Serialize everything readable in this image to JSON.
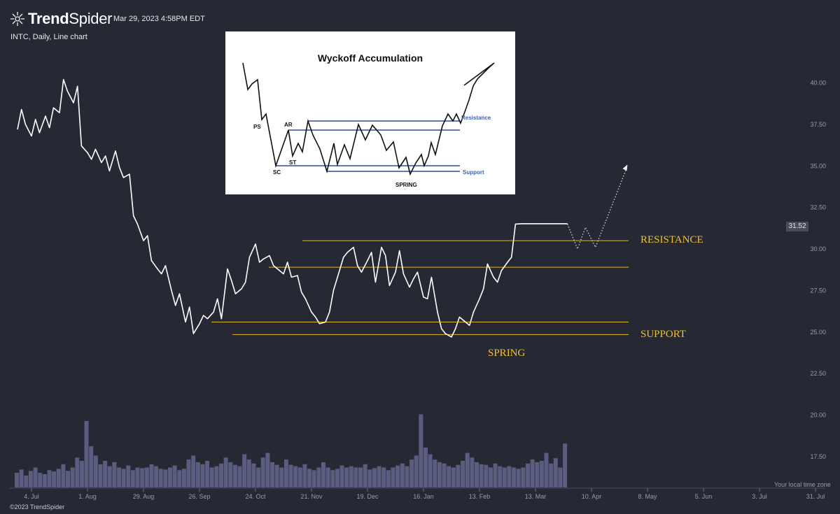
{
  "header": {
    "brand": "TrendSpider",
    "timestamp": "Mar 29, 2023 4:58PM EDT",
    "symbol_line": "INTC, Daily, Line chart"
  },
  "footer": {
    "copyright": "©2023 TrendSpider",
    "timezone_note": "Your local time zone"
  },
  "price_badge": "31.52",
  "annotations": {
    "resistance": "RESISTANCE",
    "support": "SUPPORT",
    "spring": "SPRING"
  },
  "inset": {
    "title": "Wyckoff Accumulation",
    "labels": [
      "PS",
      "AR",
      "ST",
      "SC",
      "Resistance",
      "Support",
      "SPRING"
    ]
  },
  "colors": {
    "background": "#262833",
    "price_line": "#ffffff",
    "level_lines": "#e8b623",
    "volume_bars": "#5a5d80",
    "inset_levels": "#3a62b8"
  },
  "chart_data": {
    "type": "line",
    "title": "",
    "symbol": "INTC",
    "interval": "Daily",
    "ylim": [
      15.5,
      41.5
    ],
    "y_ticks": [
      "17.50",
      "20.00",
      "22.50",
      "25.00",
      "27.50",
      "30.00",
      "32.50",
      "35.00",
      "37.50",
      "40.00"
    ],
    "x_tick_labels": [
      "4. Jul",
      "1. Aug",
      "29. Aug",
      "26. Sep",
      "24. Oct",
      "21. Nov",
      "19. Dec",
      "16. Jan",
      "13. Feb",
      "13. Mar",
      "10. Apr",
      "8. May",
      "5. Jun",
      "3. Jul",
      "31. Jul"
    ],
    "last_price": 31.52,
    "series": [
      {
        "x": [
          "2022-06-27",
          "2022-06-29",
          "2022-07-01",
          "2022-07-04",
          "2022-07-06",
          "2022-07-08",
          "2022-07-11",
          "2022-07-13",
          "2022-07-15",
          "2022-07-18",
          "2022-07-20",
          "2022-07-22",
          "2022-07-25",
          "2022-07-27",
          "2022-07-29",
          "2022-08-01",
          "2022-08-03",
          "2022-08-05",
          "2022-08-08",
          "2022-08-10",
          "2022-08-12",
          "2022-08-15",
          "2022-08-17",
          "2022-08-19",
          "2022-08-22",
          "2022-08-24",
          "2022-08-26",
          "2022-08-29",
          "2022-08-31",
          "2022-09-02",
          "2022-09-05",
          "2022-09-07",
          "2022-09-09",
          "2022-09-12",
          "2022-09-14",
          "2022-09-16",
          "2022-09-19",
          "2022-09-21",
          "2022-09-23",
          "2022-09-26",
          "2022-09-28",
          "2022-09-30",
          "2022-10-03",
          "2022-10-05",
          "2022-10-07",
          "2022-10-10",
          "2022-10-12",
          "2022-10-14",
          "2022-10-17",
          "2022-10-19",
          "2022-10-21",
          "2022-10-24",
          "2022-10-26",
          "2022-10-28",
          "2022-10-31",
          "2022-11-02",
          "2022-11-04",
          "2022-11-07",
          "2022-11-09",
          "2022-11-11",
          "2022-11-14",
          "2022-11-16",
          "2022-11-18",
          "2022-11-21",
          "2022-11-23",
          "2022-11-25",
          "2022-11-28",
          "2022-11-30",
          "2022-12-02",
          "2022-12-05",
          "2022-12-07",
          "2022-12-09",
          "2022-12-12",
          "2022-12-14",
          "2022-12-16",
          "2022-12-19",
          "2022-12-21",
          "2022-12-23",
          "2022-12-26",
          "2022-12-28",
          "2022-12-30",
          "2023-01-02",
          "2023-01-04",
          "2023-01-06",
          "2023-01-09",
          "2023-01-11",
          "2023-01-13",
          "2023-01-16",
          "2023-01-18",
          "2023-01-20",
          "2023-01-23",
          "2023-01-25",
          "2023-01-27",
          "2023-01-30",
          "2023-02-01",
          "2023-02-03",
          "2023-02-06",
          "2023-02-08",
          "2023-02-10",
          "2023-02-13",
          "2023-02-15",
          "2023-02-17",
          "2023-02-20",
          "2023-02-22",
          "2023-02-24",
          "2023-02-27",
          "2023-03-01",
          "2023-03-03",
          "2023-03-06",
          "2023-03-08",
          "2023-03-10",
          "2023-03-13",
          "2023-03-15",
          "2023-03-17",
          "2023-03-20",
          "2023-03-22",
          "2023-03-24",
          "2023-03-29"
        ],
        "y": [
          37.2,
          38.4,
          37.5,
          36.8,
          37.8,
          37.0,
          38.0,
          37.3,
          38.5,
          38.2,
          40.2,
          39.5,
          38.8,
          39.8,
          36.2,
          35.8,
          35.4,
          36.0,
          35.2,
          35.6,
          34.7,
          35.9,
          34.9,
          34.3,
          34.5,
          32.0,
          31.5,
          30.5,
          30.8,
          29.3,
          28.8,
          28.5,
          29.0,
          27.5,
          26.6,
          27.3,
          25.6,
          26.5,
          24.9,
          25.5,
          26.0,
          25.8,
          26.2,
          27.0,
          25.8,
          28.8,
          28.1,
          27.3,
          27.6,
          28.0,
          29.5,
          30.3,
          29.2,
          29.4,
          29.6,
          29.0,
          28.8,
          28.5,
          29.2,
          28.3,
          28.4,
          27.4,
          27.0,
          26.2,
          25.9,
          25.5,
          25.6,
          26.2,
          27.5,
          28.7,
          29.5,
          29.8,
          30.1,
          29.0,
          28.6,
          29.3,
          29.8,
          28.0,
          30.1,
          29.6,
          27.8,
          28.6,
          29.9,
          28.5,
          27.7,
          28.2,
          28.6,
          27.1,
          27.0,
          28.3,
          26.2,
          25.2,
          24.9,
          24.7,
          25.2,
          25.9,
          25.6,
          25.4,
          26.2,
          27.0,
          27.6,
          29.1,
          28.3,
          28.0,
          28.7,
          29.2,
          29.5,
          31.5,
          31.52,
          31.52,
          31.52,
          31.52,
          31.52,
          31.52,
          31.52,
          31.52,
          31.52,
          31.52
        ]
      }
    ],
    "projection": {
      "style": "dotted",
      "x": [
        "2023-03-29",
        "2023-04-03",
        "2023-04-07",
        "2023-04-12",
        "2023-04-28"
      ],
      "y": [
        31.5,
        30.0,
        31.3,
        30.1,
        35.0
      ]
    },
    "levels": [
      {
        "name": "RESISTANCE",
        "y": 30.5
      },
      {
        "name": "",
        "y": 28.9
      },
      {
        "name": "",
        "y": 25.6
      },
      {
        "name": "SUPPORT",
        "y": 24.85
      }
    ],
    "volume": {
      "unit": "relative",
      "values": [
        0.22,
        0.27,
        0.18,
        0.25,
        0.3,
        0.22,
        0.2,
        0.26,
        0.24,
        0.28,
        0.35,
        0.25,
        0.3,
        0.45,
        0.4,
        1.0,
        0.62,
        0.48,
        0.35,
        0.4,
        0.32,
        0.38,
        0.3,
        0.28,
        0.33,
        0.26,
        0.3,
        0.29,
        0.3,
        0.35,
        0.32,
        0.28,
        0.27,
        0.3,
        0.33,
        0.26,
        0.28,
        0.42,
        0.48,
        0.38,
        0.35,
        0.4,
        0.3,
        0.32,
        0.36,
        0.45,
        0.38,
        0.34,
        0.32,
        0.5,
        0.42,
        0.36,
        0.3,
        0.45,
        0.52,
        0.38,
        0.34,
        0.3,
        0.42,
        0.34,
        0.32,
        0.3,
        0.35,
        0.28,
        0.26,
        0.3,
        0.38,
        0.3,
        0.26,
        0.28,
        0.33,
        0.3,
        0.32,
        0.3,
        0.3,
        0.35,
        0.27,
        0.29,
        0.32,
        0.3,
        0.26,
        0.3,
        0.33,
        0.36,
        0.32,
        0.42,
        0.48,
        1.1,
        0.6,
        0.5,
        0.42,
        0.38,
        0.36,
        0.32,
        0.3,
        0.34,
        0.4,
        0.52,
        0.45,
        0.38,
        0.35,
        0.34,
        0.3,
        0.36,
        0.32,
        0.3,
        0.32,
        0.3,
        0.28,
        0.3,
        0.36,
        0.42,
        0.38,
        0.4,
        0.52,
        0.36,
        0.44,
        0.3,
        0.66
      ]
    }
  }
}
